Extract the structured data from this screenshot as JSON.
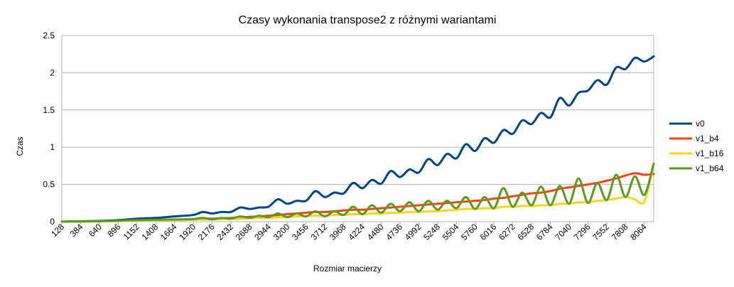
{
  "chart_data": {
    "type": "line",
    "title": "Czasy wykonania transpose2 z różnymi wariantami",
    "xlabel": "Rozmiar macierzy",
    "ylabel": "Czas",
    "ylim": [
      0,
      2.5
    ],
    "yticks": [
      "0",
      "0.5",
      "1",
      "1.5",
      "2",
      "2.5"
    ],
    "xtick_labels": [
      "128",
      "384",
      "640",
      "896",
      "1152",
      "1408",
      "1664",
      "1920",
      "2176",
      "2432",
      "2688",
      "2944",
      "3200",
      "3456",
      "3712",
      "3968",
      "4224",
      "4480",
      "4736",
      "4992",
      "5248",
      "5504",
      "5760",
      "6016",
      "6272",
      "6528",
      "6784",
      "7040",
      "7296",
      "7552",
      "7808",
      "8064"
    ],
    "grid": true,
    "legend_position": "right",
    "x": [
      128,
      384,
      640,
      896,
      1152,
      1408,
      1664,
      1920,
      2048,
      2176,
      2304,
      2432,
      2560,
      2688,
      2816,
      2944,
      3072,
      3200,
      3328,
      3456,
      3584,
      3712,
      3840,
      3968,
      4096,
      4224,
      4352,
      4480,
      4608,
      4736,
      4864,
      4992,
      5120,
      5248,
      5376,
      5504,
      5632,
      5760,
      5888,
      6016,
      6144,
      6272,
      6400,
      6528,
      6656,
      6784,
      6912,
      7040,
      7168,
      7296,
      7424,
      7552,
      7680,
      7808,
      7936,
      8064,
      8192
    ],
    "series": [
      {
        "name": "v0",
        "color": "#004586",
        "values": [
          0,
          0.005,
          0.01,
          0.02,
          0.04,
          0.05,
          0.07,
          0.09,
          0.13,
          0.11,
          0.13,
          0.13,
          0.19,
          0.17,
          0.19,
          0.2,
          0.3,
          0.24,
          0.28,
          0.28,
          0.41,
          0.33,
          0.39,
          0.38,
          0.52,
          0.45,
          0.56,
          0.51,
          0.68,
          0.6,
          0.7,
          0.66,
          0.84,
          0.76,
          0.91,
          0.85,
          1.04,
          0.95,
          1.12,
          1.06,
          1.23,
          1.18,
          1.36,
          1.31,
          1.46,
          1.4,
          1.66,
          1.56,
          1.73,
          1.76,
          1.9,
          1.84,
          2.07,
          2.05,
          2.2,
          2.15,
          2.22
        ]
      },
      {
        "name": "v1_b4",
        "color": "#ff420e",
        "values": [
          0,
          0.002,
          0.005,
          0.01,
          0.015,
          0.02,
          0.025,
          0.03,
          0.04,
          0.04,
          0.045,
          0.05,
          0.06,
          0.065,
          0.07,
          0.08,
          0.09,
          0.1,
          0.11,
          0.12,
          0.13,
          0.13,
          0.14,
          0.15,
          0.16,
          0.16,
          0.17,
          0.18,
          0.19,
          0.2,
          0.21,
          0.22,
          0.23,
          0.24,
          0.25,
          0.26,
          0.27,
          0.28,
          0.29,
          0.31,
          0.32,
          0.34,
          0.36,
          0.38,
          0.39,
          0.41,
          0.44,
          0.46,
          0.48,
          0.5,
          0.52,
          0.55,
          0.58,
          0.62,
          0.65,
          0.63,
          0.64
        ]
      },
      {
        "name": "v1_b16",
        "color": "#ffd320",
        "values": [
          0,
          0.002,
          0.004,
          0.008,
          0.012,
          0.015,
          0.02,
          0.025,
          0.03,
          0.03,
          0.035,
          0.035,
          0.04,
          0.045,
          0.05,
          0.05,
          0.06,
          0.06,
          0.07,
          0.075,
          0.08,
          0.08,
          0.09,
          0.09,
          0.1,
          0.1,
          0.11,
          0.11,
          0.12,
          0.12,
          0.13,
          0.13,
          0.14,
          0.14,
          0.15,
          0.16,
          0.17,
          0.17,
          0.18,
          0.18,
          0.2,
          0.2,
          0.21,
          0.21,
          0.22,
          0.22,
          0.24,
          0.24,
          0.26,
          0.26,
          0.28,
          0.29,
          0.31,
          0.33,
          0.3,
          0.27,
          0.78
        ]
      },
      {
        "name": "v1_b64",
        "color": "#579d1c",
        "values": [
          0,
          0.003,
          0.006,
          0.012,
          0.02,
          0.025,
          0.03,
          0.035,
          0.05,
          0.03,
          0.05,
          0.04,
          0.07,
          0.05,
          0.08,
          0.06,
          0.11,
          0.06,
          0.11,
          0.07,
          0.14,
          0.07,
          0.14,
          0.09,
          0.2,
          0.1,
          0.22,
          0.12,
          0.24,
          0.14,
          0.26,
          0.14,
          0.28,
          0.16,
          0.28,
          0.18,
          0.33,
          0.17,
          0.33,
          0.18,
          0.45,
          0.2,
          0.39,
          0.22,
          0.47,
          0.22,
          0.48,
          0.24,
          0.58,
          0.25,
          0.52,
          0.29,
          0.63,
          0.33,
          0.61,
          0.36,
          0.78
        ]
      }
    ]
  }
}
